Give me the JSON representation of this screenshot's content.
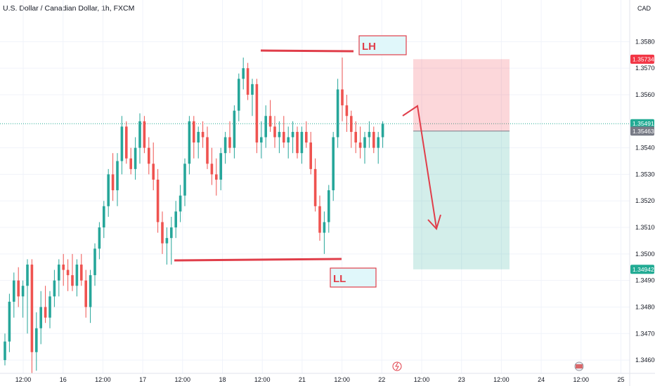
{
  "chart_data": {
    "type": "candlestick",
    "title": "U.S. Dollar / Canadian Dollar, 1h, FXCM",
    "currency": "CAD",
    "ylim": [
      1.3455,
      1.3592
    ],
    "y_ticks": [
      "1.35800",
      "1.35700",
      "1.35600",
      "1.35400",
      "1.35300",
      "1.35200",
      "1.35100",
      "1.35000",
      "1.34900",
      "1.34800",
      "1.34700",
      "1.34600"
    ],
    "x_ticks": [
      "12:00",
      "16",
      "12:00",
      "17",
      "12:00",
      "18",
      "12:00",
      "21",
      "12:00",
      "22",
      "12:00",
      "23",
      "12:00",
      "24",
      "12:00",
      "25"
    ],
    "price_tags": [
      {
        "label": "1.35734",
        "value": 1.35734,
        "color": "#f23645"
      },
      {
        "label": "1.35491",
        "value": 1.35491,
        "color": "#22ab94"
      },
      {
        "label": "1.35463",
        "value": 1.35463,
        "color": "#787b86"
      },
      {
        "label": "1.34942",
        "value": 1.34942,
        "color": "#22ab94"
      }
    ],
    "candles": [
      [
        1.346,
        1.347,
        1.3458,
        1.3467
      ],
      [
        1.3467,
        1.3485,
        1.3463,
        1.3482
      ],
      [
        1.3482,
        1.3493,
        1.3476,
        1.349
      ],
      [
        1.349,
        1.3495,
        1.348,
        1.3484
      ],
      [
        1.3484,
        1.349,
        1.3476,
        1.3488
      ],
      [
        1.3488,
        1.3498,
        1.347,
        1.3496
      ],
      [
        1.3496,
        1.3498,
        1.3455,
        1.3463
      ],
      [
        1.3463,
        1.3478,
        1.3456,
        1.3472
      ],
      [
        1.3472,
        1.3486,
        1.3466,
        1.348
      ],
      [
        1.348,
        1.3488,
        1.3474,
        1.3476
      ],
      [
        1.3476,
        1.3486,
        1.3472,
        1.3484
      ],
      [
        1.3484,
        1.3494,
        1.348,
        1.349
      ],
      [
        1.349,
        1.3498,
        1.3484,
        1.3496
      ],
      [
        1.3496,
        1.35,
        1.3488,
        1.3494
      ],
      [
        1.3494,
        1.3498,
        1.3486,
        1.3492
      ],
      [
        1.3492,
        1.35,
        1.3486,
        1.3488
      ],
      [
        1.3488,
        1.3498,
        1.3484,
        1.3496
      ],
      [
        1.3496,
        1.35,
        1.3488,
        1.349
      ],
      [
        1.349,
        1.3494,
        1.3476,
        1.348
      ],
      [
        1.348,
        1.3494,
        1.3474,
        1.3492
      ],
      [
        1.3492,
        1.3504,
        1.3488,
        1.3502
      ],
      [
        1.3502,
        1.3512,
        1.3498,
        1.351
      ],
      [
        1.351,
        1.352,
        1.3506,
        1.3518
      ],
      [
        1.3518,
        1.3532,
        1.3514,
        1.353
      ],
      [
        1.353,
        1.3538,
        1.352,
        1.3524
      ],
      [
        1.3524,
        1.3538,
        1.3518,
        1.3535
      ],
      [
        1.3535,
        1.3552,
        1.353,
        1.3548
      ],
      [
        1.3548,
        1.355,
        1.3534,
        1.3536
      ],
      [
        1.3536,
        1.354,
        1.353,
        1.3532
      ],
      [
        1.3532,
        1.3544,
        1.3528,
        1.354
      ],
      [
        1.354,
        1.3553,
        1.3534,
        1.355
      ],
      [
        1.355,
        1.3552,
        1.3538,
        1.354
      ],
      [
        1.354,
        1.3544,
        1.353,
        1.3534
      ],
      [
        1.3534,
        1.3542,
        1.3524,
        1.3528
      ],
      [
        1.3528,
        1.3532,
        1.3508,
        1.3512
      ],
      [
        1.3512,
        1.3516,
        1.35,
        1.3504
      ],
      [
        1.3504,
        1.351,
        1.3496,
        1.3506
      ],
      [
        1.3506,
        1.3514,
        1.3496,
        1.351
      ],
      [
        1.351,
        1.352,
        1.3506,
        1.3516
      ],
      [
        1.3516,
        1.3526,
        1.3512,
        1.3522
      ],
      [
        1.3522,
        1.3536,
        1.3518,
        1.3534
      ],
      [
        1.3534,
        1.3552,
        1.353,
        1.355
      ],
      [
        1.355,
        1.3552,
        1.3536,
        1.3542
      ],
      [
        1.3542,
        1.3548,
        1.3536,
        1.3546
      ],
      [
        1.3546,
        1.355,
        1.354,
        1.3544
      ],
      [
        1.3544,
        1.3548,
        1.3532,
        1.3534
      ],
      [
        1.3534,
        1.354,
        1.3526,
        1.353
      ],
      [
        1.353,
        1.3536,
        1.3522,
        1.3528
      ],
      [
        1.3528,
        1.354,
        1.3524,
        1.3538
      ],
      [
        1.3538,
        1.3546,
        1.3534,
        1.3544
      ],
      [
        1.3544,
        1.355,
        1.3538,
        1.354
      ],
      [
        1.354,
        1.3556,
        1.3536,
        1.3554
      ],
      [
        1.3554,
        1.3568,
        1.355,
        1.3566
      ],
      [
        1.3566,
        1.3574,
        1.3562,
        1.357
      ],
      [
        1.357,
        1.3572,
        1.3558,
        1.356
      ],
      [
        1.356,
        1.3566,
        1.3552,
        1.3564
      ],
      [
        1.3564,
        1.3566,
        1.3538,
        1.3542
      ],
      [
        1.3542,
        1.355,
        1.3536,
        1.3544
      ],
      [
        1.3544,
        1.3556,
        1.354,
        1.3552
      ],
      [
        1.3552,
        1.3558,
        1.3546,
        1.3548
      ],
      [
        1.3548,
        1.3552,
        1.354,
        1.3544
      ],
      [
        1.3544,
        1.355,
        1.3538,
        1.3546
      ],
      [
        1.3546,
        1.3552,
        1.354,
        1.3542
      ],
      [
        1.3542,
        1.3548,
        1.3536,
        1.3544
      ],
      [
        1.3544,
        1.355,
        1.3538,
        1.3546
      ],
      [
        1.3546,
        1.3548,
        1.3536,
        1.3538
      ],
      [
        1.3538,
        1.3548,
        1.3534,
        1.3546
      ],
      [
        1.3546,
        1.355,
        1.354,
        1.3542
      ],
      [
        1.3542,
        1.3546,
        1.353,
        1.3532
      ],
      [
        1.3532,
        1.3536,
        1.3516,
        1.3518
      ],
      [
        1.3518,
        1.3522,
        1.3505,
        1.3508
      ],
      [
        1.3508,
        1.3516,
        1.35,
        1.3512
      ],
      [
        1.3512,
        1.3526,
        1.3508,
        1.3524
      ],
      [
        1.3524,
        1.3546,
        1.352,
        1.3544
      ],
      [
        1.3544,
        1.3566,
        1.354,
        1.3562
      ],
      [
        1.3562,
        1.3574,
        1.355,
        1.3556
      ],
      [
        1.3556,
        1.356,
        1.3546,
        1.3552
      ],
      [
        1.3552,
        1.3554,
        1.354,
        1.3546
      ],
      [
        1.3546,
        1.355,
        1.3538,
        1.3542
      ],
      [
        1.3542,
        1.3548,
        1.3536,
        1.354
      ],
      [
        1.354,
        1.3546,
        1.3534,
        1.3544
      ],
      [
        1.3544,
        1.355,
        1.354,
        1.3546
      ],
      [
        1.3546,
        1.3548,
        1.3538,
        1.354
      ],
      [
        1.354,
        1.3546,
        1.3534,
        1.3544
      ],
      [
        1.3544,
        1.355,
        1.354,
        1.3549
      ]
    ],
    "annotations": [
      {
        "label": "LH",
        "type": "resistance-line",
        "price": 1.35745
      },
      {
        "label": "LL",
        "type": "support-line",
        "price": 1.3497
      }
    ],
    "position": {
      "entry": 1.35463,
      "stop": 1.35734,
      "target": 1.34942
    }
  }
}
